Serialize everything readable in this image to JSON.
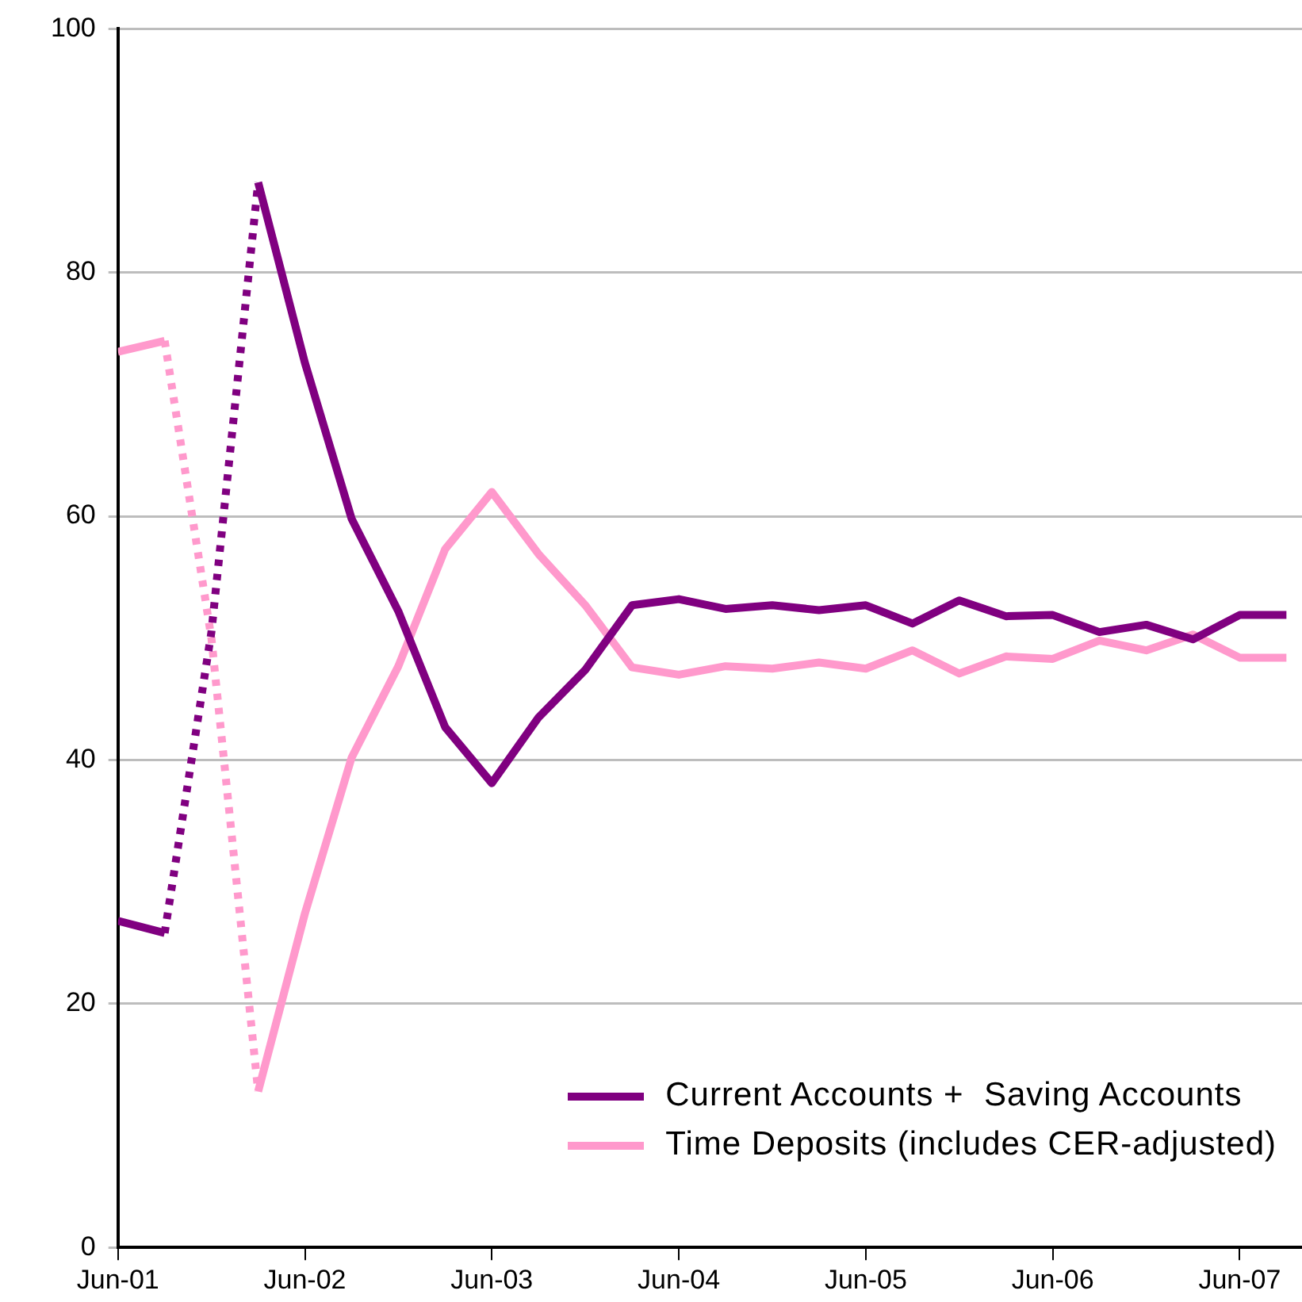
{
  "chart_data": {
    "type": "line",
    "xlim": [
      "2001-06",
      "2007-10"
    ],
    "xticks": [
      {
        "value": "2001-06",
        "label": "Jun-01"
      },
      {
        "value": "2002-06",
        "label": "Jun-02"
      },
      {
        "value": "2003-06",
        "label": "Jun-03"
      },
      {
        "value": "2004-06",
        "label": "Jun-04"
      },
      {
        "value": "2005-06",
        "label": "Jun-05"
      },
      {
        "value": "2006-06",
        "label": "Jun-06"
      },
      {
        "value": "2007-06",
        "label": "Jun-07"
      }
    ],
    "ylim": [
      0,
      100
    ],
    "yticks": [
      0,
      20,
      40,
      60,
      80,
      100
    ],
    "grid": "y",
    "legend": "bottom right",
    "marker": "none",
    "series": [
      {
        "name": "Current Accounts +  Saving Accounts",
        "color": "#800080",
        "line_style": "solid",
        "x": [
          "2001-06",
          "2001-09"
        ],
        "values": [
          26.8,
          25.8
        ]
      },
      {
        "color": "#800080",
        "line_style": "dotted",
        "x": [
          "2001-09",
          "2001-12",
          "2002-03"
        ],
        "values": [
          25.8,
          50.5,
          87.4
        ]
      },
      {
        "color": "#800080",
        "line_style": "solid",
        "x": [
          "2002-03",
          "2002-06",
          "2002-09",
          "2002-12",
          "2003-03",
          "2003-06",
          "2003-09",
          "2003-12",
          "2004-03",
          "2004-06",
          "2004-09",
          "2004-12",
          "2005-03",
          "2005-06",
          "2005-09",
          "2005-12",
          "2006-03",
          "2006-06",
          "2006-09",
          "2006-12",
          "2007-03",
          "2007-06",
          "2007-09"
        ],
        "values": [
          87.4,
          72.6,
          59.8,
          52.2,
          42.7,
          38.1,
          43.5,
          47.4,
          52.7,
          53.2,
          52.4,
          52.7,
          52.3,
          52.7,
          51.2,
          53.1,
          51.8,
          51.9,
          50.5,
          51.1,
          49.9,
          51.9,
          51.9
        ]
      },
      {
        "name": "Time Deposits (includes CER-adjusted)",
        "color": "#ff99cc",
        "line_style": "solid",
        "x": [
          "2001-06",
          "2001-09"
        ],
        "values": [
          73.5,
          74.4
        ]
      },
      {
        "color": "#ff99cc",
        "line_style": "dotted",
        "x": [
          "2001-09",
          "2001-12",
          "2002-03"
        ],
        "values": [
          74.4,
          50,
          12.8
        ]
      },
      {
        "color": "#ff99cc",
        "line_style": "solid",
        "x": [
          "2002-03",
          "2002-06",
          "2002-09",
          "2002-12",
          "2003-03",
          "2003-06",
          "2003-09",
          "2003-12",
          "2004-03",
          "2004-06",
          "2004-09",
          "2004-12",
          "2005-03",
          "2005-06",
          "2005-09",
          "2005-12",
          "2006-03",
          "2006-06",
          "2006-09",
          "2006-12",
          "2007-03",
          "2007-06",
          "2007-09"
        ],
        "values": [
          12.8,
          27.4,
          40.2,
          47.7,
          57.3,
          62.0,
          56.9,
          52.7,
          47.6,
          47.0,
          47.7,
          47.5,
          48.0,
          47.5,
          49.0,
          47.1,
          48.5,
          48.3,
          49.8,
          49.0,
          50.3,
          48.4,
          48.4
        ]
      }
    ]
  }
}
